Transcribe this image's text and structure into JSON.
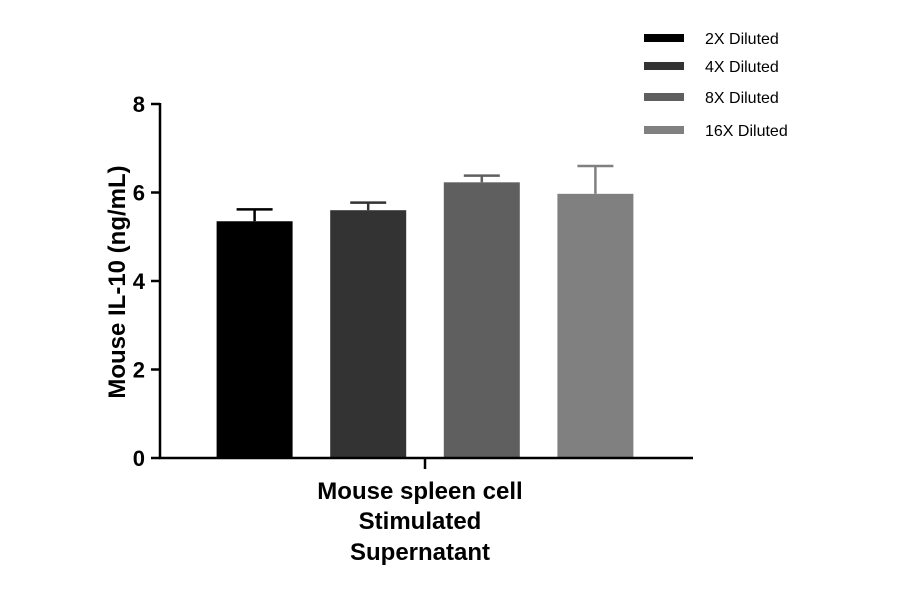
{
  "chart_data": {
    "type": "bar",
    "title": "",
    "xlabel_lines": [
      "Mouse spleen cell",
      "Stimulated",
      "Supernatant"
    ],
    "ylabel": "Mouse IL-10 (ng/mL)",
    "ylim": [
      0,
      8
    ],
    "yticks": [
      0,
      2,
      4,
      6,
      8
    ],
    "grid": false,
    "legend_position": "top-right",
    "categories": [
      "Mouse spleen cell Stimulated Supernatant"
    ],
    "series": [
      {
        "name": "2X Diluted",
        "values": [
          5.35
        ],
        "error": [
          0.27
        ],
        "color": "#000000"
      },
      {
        "name": "4X Diluted",
        "values": [
          5.6
        ],
        "error": [
          0.17
        ],
        "color": "#333333"
      },
      {
        "name": "8X Diluted",
        "values": [
          6.23
        ],
        "error": [
          0.15
        ],
        "color": "#5f5f5f"
      },
      {
        "name": "16X Diluted",
        "values": [
          5.97
        ],
        "error": [
          0.63
        ],
        "color": "#808080"
      }
    ]
  }
}
